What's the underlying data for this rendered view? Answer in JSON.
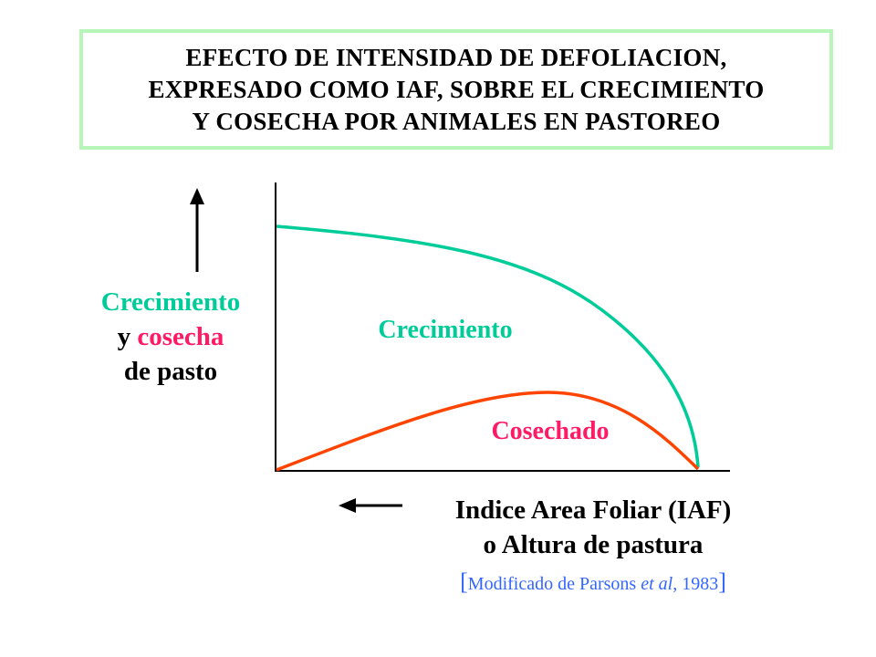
{
  "title": {
    "lines": [
      "EFECTO DE INTENSIDAD DE DEFOLIACION,",
      "EXPRESADO COMO IAF, SOBRE EL CRECIMIENTO",
      "Y COSECHA POR ANIMALES EN PASTOREO"
    ]
  },
  "y_axis": {
    "line1": "Crecimiento",
    "line2_prefix": "y ",
    "line2_colored": "cosecha",
    "line3": "de pasto"
  },
  "x_axis": {
    "line1": "Indice Area Foliar (IAF)",
    "line2": "o Altura de pastura"
  },
  "curves": {
    "growth_label": "Crecimiento",
    "harvest_label": "Cosechado"
  },
  "source": {
    "open": "[",
    "text_before": "Modificado de Parsons ",
    "text_italic": "et al",
    "text_after": ", 1983",
    "close": "]"
  },
  "colors": {
    "growth": "#00cc99",
    "harvest_curve": "#ff4400",
    "harvest_text": "#ff1a66",
    "title_border": "#b8f5b8",
    "source": "#3366ff"
  },
  "icons": [
    "arrow-up-icon",
    "arrow-left-icon"
  ]
}
